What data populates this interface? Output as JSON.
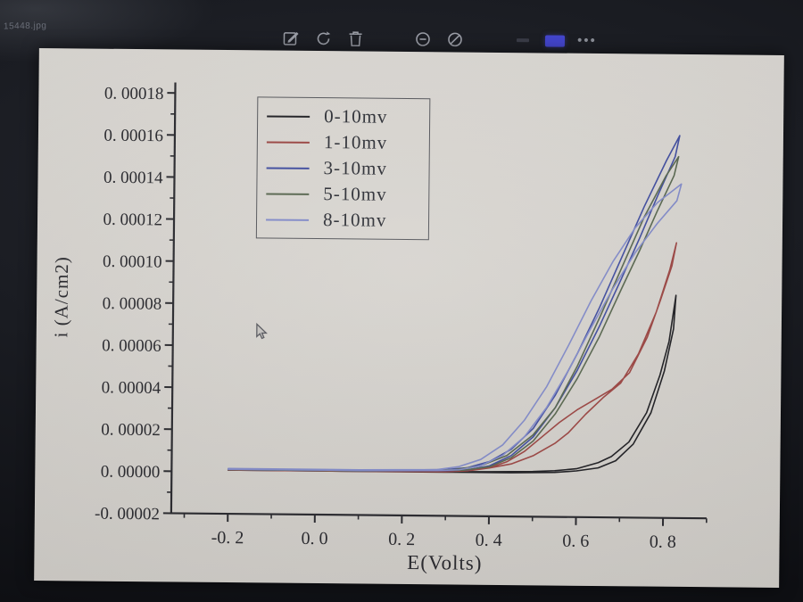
{
  "window": {
    "filename": "15448.jpg",
    "toolbar": {
      "icons": [
        "edit",
        "rotate",
        "delete",
        "circle-minus",
        "circle-slash",
        "minimize",
        "active-indicator",
        "more-options"
      ],
      "accent_color": "#4345cc"
    }
  },
  "photo": {
    "paper_color": "#d6d3ce",
    "text_color": "#26262b"
  },
  "chart_data": {
    "type": "line",
    "title": "",
    "xlabel": "E(Volts)",
    "ylabel": "i (A/cm2)",
    "xlim": [
      -0.33,
      0.9
    ],
    "ylim": [
      -2e-05,
      0.000185
    ],
    "grid": false,
    "legend_position": "upper-left-inside",
    "x_ticks": [
      -0.2,
      0.0,
      0.2,
      0.4,
      0.6,
      0.8
    ],
    "x_tick_labels": [
      "-0. 2",
      "0. 0",
      "0. 2",
      "0. 4",
      "0. 6",
      "0. 8"
    ],
    "y_ticks": [
      -2e-05,
      0.0,
      2e-05,
      4e-05,
      6e-05,
      8e-05,
      0.0001,
      0.00012,
      0.00014,
      0.00016,
      0.00018
    ],
    "y_tick_labels": [
      "-0. 00002",
      "0. 00000",
      "0. 00002",
      "0. 00004",
      "0. 00006",
      "0. 00008",
      "0. 00010",
      "0. 00012",
      "0. 00014",
      "0. 00016",
      "0. 00018"
    ],
    "series": [
      {
        "name": "0-10mv",
        "color": "#1c1c20",
        "points": [
          [
            -0.2,
            1e-06
          ],
          [
            0.0,
            1e-06
          ],
          [
            0.2,
            1e-06
          ],
          [
            0.3,
            1e-06
          ],
          [
            0.4,
            1.2e-06
          ],
          [
            0.5,
            1.5e-06
          ],
          [
            0.55,
            2e-06
          ],
          [
            0.6,
            3e-06
          ],
          [
            0.65,
            6e-06
          ],
          [
            0.68,
            9e-06
          ],
          [
            0.72,
            1.6e-05
          ],
          [
            0.76,
            3e-05
          ],
          [
            0.79,
            4.8e-05
          ],
          [
            0.81,
            6.4e-05
          ],
          [
            0.825,
            8.6e-05
          ],
          [
            0.82,
            7e-05
          ],
          [
            0.8,
            5e-05
          ],
          [
            0.77,
            3e-05
          ],
          [
            0.73,
            1.5e-05
          ],
          [
            0.69,
            7e-06
          ],
          [
            0.65,
            3.5e-06
          ],
          [
            0.6,
            2e-06
          ],
          [
            0.55,
            1.2e-06
          ],
          [
            0.45,
            8e-07
          ],
          [
            0.3,
            8e-07
          ],
          [
            0.0,
            8e-07
          ],
          [
            -0.2,
            8e-07
          ]
        ]
      },
      {
        "name": "1-10mv",
        "color": "#9a4340",
        "points": [
          [
            -0.2,
            1e-06
          ],
          [
            0.1,
            1e-06
          ],
          [
            0.3,
            1.5e-06
          ],
          [
            0.35,
            2e-06
          ],
          [
            0.4,
            3e-06
          ],
          [
            0.45,
            5e-06
          ],
          [
            0.5,
            9e-06
          ],
          [
            0.55,
            1.5e-05
          ],
          [
            0.58,
            2e-05
          ],
          [
            0.62,
            2.9e-05
          ],
          [
            0.66,
            3.7e-05
          ],
          [
            0.7,
            4.4e-05
          ],
          [
            0.74,
            5.8e-05
          ],
          [
            0.78,
            7.8e-05
          ],
          [
            0.81,
            9.8e-05
          ],
          [
            0.825,
            0.000111
          ],
          [
            0.815,
            0.0001
          ],
          [
            0.79,
            8.4e-05
          ],
          [
            0.76,
            6.6e-05
          ],
          [
            0.72,
            4.9e-05
          ],
          [
            0.68,
            4.1e-05
          ],
          [
            0.64,
            3.6e-05
          ],
          [
            0.6,
            3.1e-05
          ],
          [
            0.56,
            2.5e-05
          ],
          [
            0.52,
            1.8e-05
          ],
          [
            0.48,
            1.1e-05
          ],
          [
            0.44,
            6e-06
          ],
          [
            0.4,
            3e-06
          ],
          [
            0.35,
            1.5e-06
          ],
          [
            0.3,
            1e-06
          ],
          [
            0.1,
            8e-07
          ],
          [
            -0.2,
            8e-07
          ]
        ]
      },
      {
        "name": "3-10mv",
        "color": "#3d4a9e",
        "points": [
          [
            -0.2,
            1.2e-06
          ],
          [
            0.1,
            1.2e-06
          ],
          [
            0.3,
            2e-06
          ],
          [
            0.35,
            3e-06
          ],
          [
            0.4,
            6e-06
          ],
          [
            0.45,
            1.2e-05
          ],
          [
            0.5,
            2.2e-05
          ],
          [
            0.55,
            3.8e-05
          ],
          [
            0.6,
            5.8e-05
          ],
          [
            0.65,
            8e-05
          ],
          [
            0.7,
            0.000104
          ],
          [
            0.75,
            0.000128
          ],
          [
            0.8,
            0.00015
          ],
          [
            0.83,
            0.000162
          ],
          [
            0.82,
            0.000152
          ],
          [
            0.78,
            0.000133
          ],
          [
            0.74,
            0.000113
          ],
          [
            0.7,
            9.4e-05
          ],
          [
            0.65,
            7.1e-05
          ],
          [
            0.6,
            5e-05
          ],
          [
            0.55,
            3.2e-05
          ],
          [
            0.5,
            1.8e-05
          ],
          [
            0.45,
            9e-06
          ],
          [
            0.4,
            4e-06
          ],
          [
            0.35,
            2e-06
          ],
          [
            0.3,
            1.5e-06
          ],
          [
            0.1,
            1e-06
          ],
          [
            -0.2,
            1e-06
          ]
        ]
      },
      {
        "name": "5-10mv",
        "color": "#55644c",
        "points": [
          [
            -0.2,
            1.2e-06
          ],
          [
            0.1,
            1.2e-06
          ],
          [
            0.32,
            2e-06
          ],
          [
            0.38,
            4e-06
          ],
          [
            0.44,
            9e-06
          ],
          [
            0.5,
            1.9e-05
          ],
          [
            0.55,
            3.2e-05
          ],
          [
            0.6,
            5.2e-05
          ],
          [
            0.65,
            7.5e-05
          ],
          [
            0.7,
            9.9e-05
          ],
          [
            0.75,
            0.000123
          ],
          [
            0.8,
            0.000143
          ],
          [
            0.828,
            0.000152
          ],
          [
            0.818,
            0.000143
          ],
          [
            0.78,
            0.000126
          ],
          [
            0.74,
            0.000107
          ],
          [
            0.7,
            8.9e-05
          ],
          [
            0.65,
            6.6e-05
          ],
          [
            0.6,
            4.6e-05
          ],
          [
            0.55,
            2.9e-05
          ],
          [
            0.5,
            1.6e-05
          ],
          [
            0.45,
            8e-06
          ],
          [
            0.4,
            3.5e-06
          ],
          [
            0.34,
            1.8e-06
          ],
          [
            0.1,
            1e-06
          ],
          [
            -0.2,
            1e-06
          ]
        ]
      },
      {
        "name": "8-10mv",
        "color": "#8089c8",
        "points": [
          [
            -0.2,
            1.5e-06
          ],
          [
            0.1,
            1.5e-06
          ],
          [
            0.28,
            2e-06
          ],
          [
            0.33,
            3.5e-06
          ],
          [
            0.38,
            7e-06
          ],
          [
            0.43,
            1.4e-05
          ],
          [
            0.48,
            2.6e-05
          ],
          [
            0.53,
            4.2e-05
          ],
          [
            0.58,
            6.2e-05
          ],
          [
            0.63,
            8.3e-05
          ],
          [
            0.68,
            0.000102
          ],
          [
            0.73,
            0.000118
          ],
          [
            0.78,
            0.00013
          ],
          [
            0.835,
            0.000139
          ],
          [
            0.825,
            0.000131
          ],
          [
            0.78,
            0.00012
          ],
          [
            0.73,
            0.000106
          ],
          [
            0.68,
            8.9e-05
          ],
          [
            0.63,
            7e-05
          ],
          [
            0.58,
            5e-05
          ],
          [
            0.53,
            3.2e-05
          ],
          [
            0.48,
            1.8e-05
          ],
          [
            0.43,
            9e-06
          ],
          [
            0.38,
            4e-06
          ],
          [
            0.33,
            2e-06
          ],
          [
            0.28,
            1.5e-06
          ],
          [
            0.1,
            1.2e-06
          ],
          [
            -0.2,
            1.2e-06
          ]
        ]
      }
    ]
  }
}
